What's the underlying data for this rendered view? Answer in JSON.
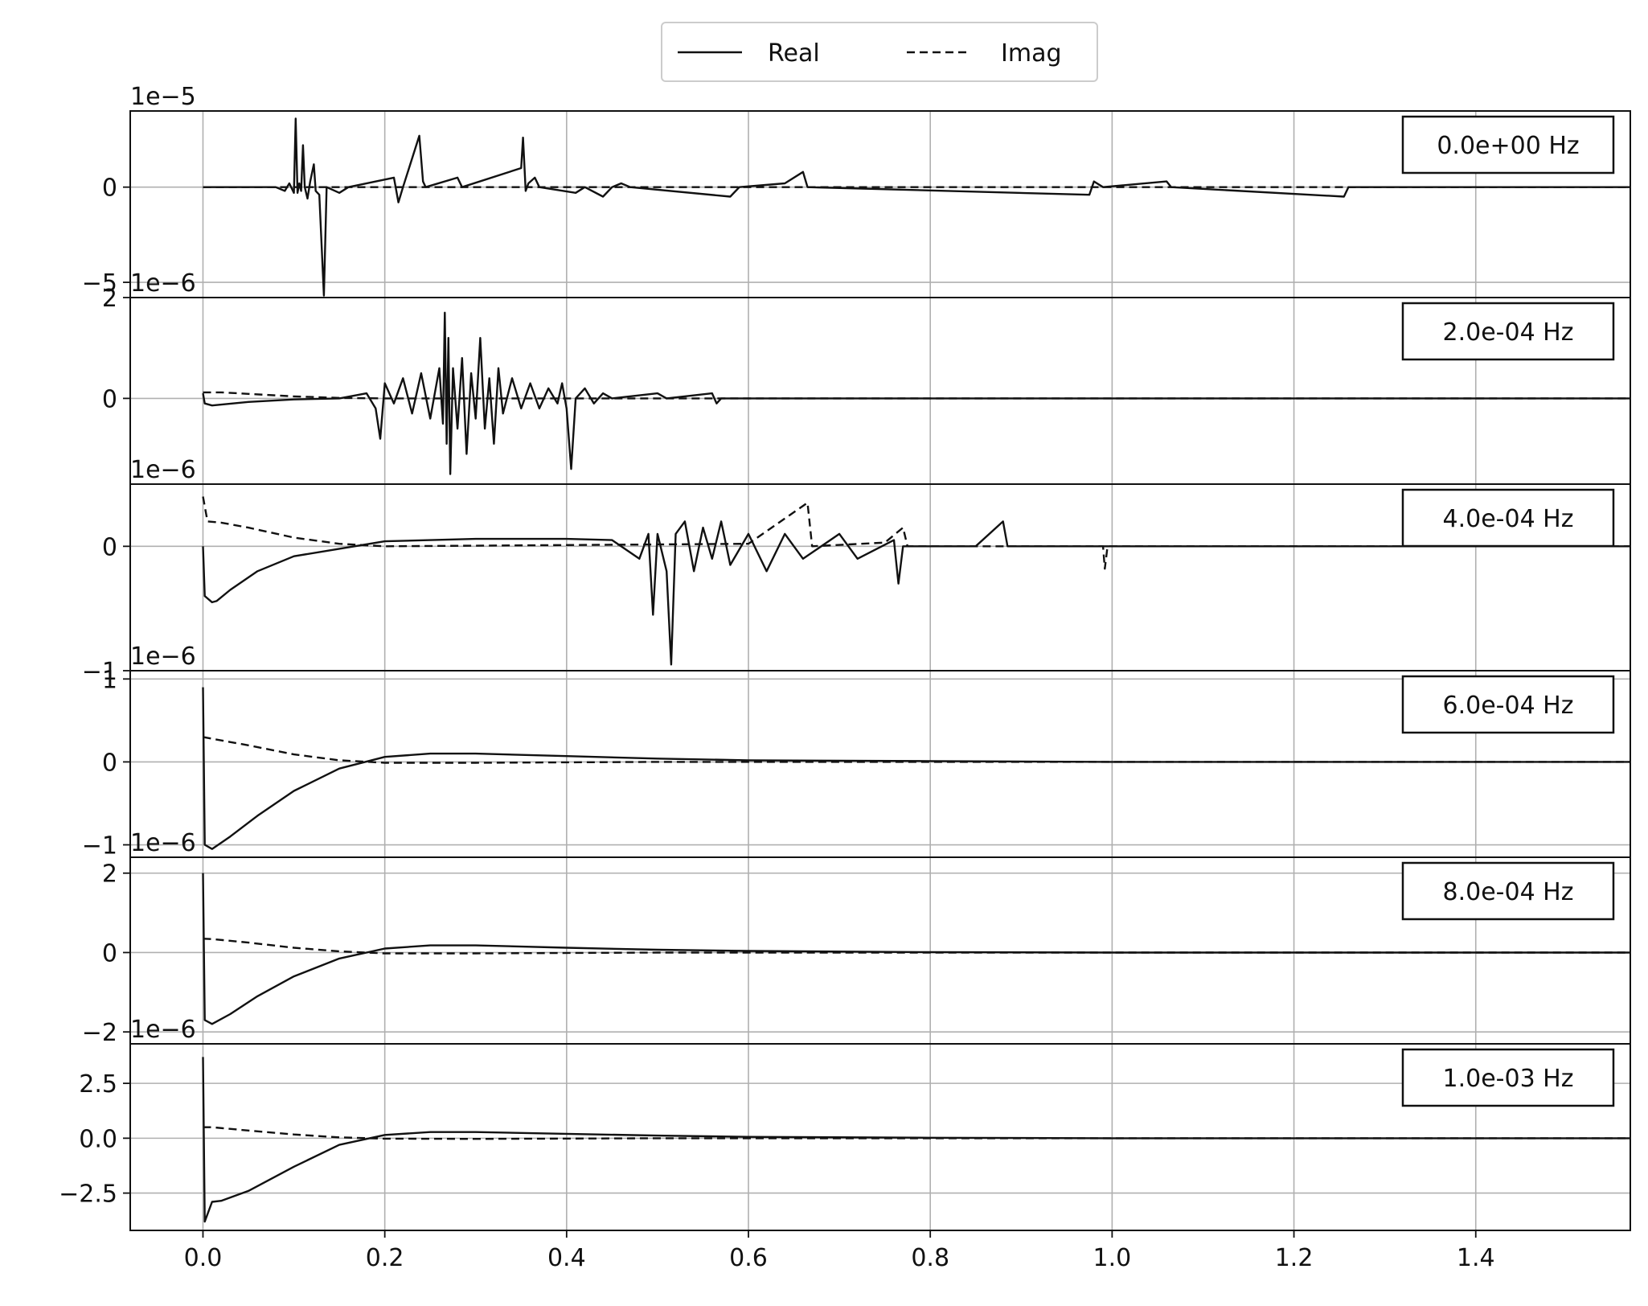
{
  "legend": {
    "entries": [
      {
        "label": "Real",
        "style": "solid"
      },
      {
        "label": "Imag",
        "style": "dashed"
      }
    ]
  },
  "chart_data": {
    "type": "line",
    "title": "",
    "xlabel": "",
    "xlim": [
      -0.08,
      1.57
    ],
    "xticks": [
      0.0,
      0.2,
      0.4,
      0.6,
      0.8,
      1.0,
      1.2,
      1.4
    ],
    "xtick_labels": [
      "0.0",
      "0.2",
      "0.4",
      "0.6",
      "0.8",
      "1.0",
      "1.2",
      "1.4"
    ],
    "grid": true,
    "legend_position": "top-center",
    "line_color": "#111111",
    "series_names": [
      "Real",
      "Imag"
    ],
    "panels": [
      {
        "frequency_label": "0.0e+00 Hz",
        "offset_text": "1e−5",
        "ylim": [
          -5.8,
          4.0
        ],
        "yticks": [
          0,
          -5
        ],
        "ytick_labels": [
          "0",
          "−5"
        ],
        "real": [
          [
            0.0,
            0
          ],
          [
            0.08,
            0
          ],
          [
            0.09,
            -0.2
          ],
          [
            0.095,
            0.2
          ],
          [
            0.1,
            -0.3
          ],
          [
            0.102,
            3.6
          ],
          [
            0.104,
            -0.3
          ],
          [
            0.106,
            0.2
          ],
          [
            0.108,
            -0.2
          ],
          [
            0.11,
            2.2
          ],
          [
            0.112,
            0
          ],
          [
            0.115,
            -0.6
          ],
          [
            0.118,
            0.3
          ],
          [
            0.122,
            1.2
          ],
          [
            0.124,
            -0.2
          ],
          [
            0.128,
            -0.4
          ],
          [
            0.133,
            -5.7
          ],
          [
            0.136,
            0
          ],
          [
            0.15,
            -0.3
          ],
          [
            0.16,
            0
          ],
          [
            0.21,
            0.5
          ],
          [
            0.215,
            -0.8
          ],
          [
            0.22,
            0
          ],
          [
            0.238,
            2.7
          ],
          [
            0.242,
            0.3
          ],
          [
            0.245,
            0
          ],
          [
            0.28,
            0.5
          ],
          [
            0.285,
            0
          ],
          [
            0.35,
            1.0
          ],
          [
            0.352,
            2.6
          ],
          [
            0.355,
            -0.2
          ],
          [
            0.358,
            0.2
          ],
          [
            0.365,
            0.5
          ],
          [
            0.37,
            0
          ],
          [
            0.41,
            -0.3
          ],
          [
            0.42,
            0
          ],
          [
            0.44,
            -0.5
          ],
          [
            0.45,
            0
          ],
          [
            0.46,
            0.2
          ],
          [
            0.47,
            0
          ],
          [
            0.58,
            -0.5
          ],
          [
            0.59,
            0
          ],
          [
            0.64,
            0.2
          ],
          [
            0.66,
            0.8
          ],
          [
            0.665,
            0
          ],
          [
            0.975,
            -0.4
          ],
          [
            0.98,
            0.3
          ],
          [
            0.99,
            0
          ],
          [
            1.06,
            0.3
          ],
          [
            1.065,
            0
          ],
          [
            1.255,
            -0.5
          ],
          [
            1.26,
            0
          ],
          [
            1.57,
            0
          ]
        ],
        "imag": [
          [
            0.0,
            0
          ],
          [
            1.57,
            0
          ]
        ]
      },
      {
        "frequency_label": "2.0e-04 Hz",
        "offset_text": "1e−6",
        "ylim": [
          -1.7,
          2.0
        ],
        "yticks": [
          0,
          2
        ],
        "ytick_labels": [
          "0",
          "2"
        ],
        "real": [
          [
            0.0,
            0.1
          ],
          [
            0.002,
            -0.1
          ],
          [
            0.01,
            -0.14
          ],
          [
            0.05,
            -0.07
          ],
          [
            0.1,
            -0.02
          ],
          [
            0.15,
            0
          ],
          [
            0.18,
            0.1
          ],
          [
            0.19,
            -0.2
          ],
          [
            0.195,
            -0.8
          ],
          [
            0.2,
            0.3
          ],
          [
            0.21,
            -0.1
          ],
          [
            0.22,
            0.4
          ],
          [
            0.23,
            -0.3
          ],
          [
            0.24,
            0.5
          ],
          [
            0.25,
            -0.4
          ],
          [
            0.26,
            0.6
          ],
          [
            0.264,
            -0.5
          ],
          [
            0.266,
            1.7
          ],
          [
            0.268,
            -0.9
          ],
          [
            0.27,
            1.2
          ],
          [
            0.272,
            -1.5
          ],
          [
            0.275,
            0.6
          ],
          [
            0.28,
            -0.6
          ],
          [
            0.285,
            0.8
          ],
          [
            0.29,
            -1.1
          ],
          [
            0.295,
            0.5
          ],
          [
            0.3,
            -0.4
          ],
          [
            0.305,
            1.2
          ],
          [
            0.31,
            -0.6
          ],
          [
            0.315,
            0.4
          ],
          [
            0.32,
            -0.9
          ],
          [
            0.325,
            0.6
          ],
          [
            0.33,
            -0.3
          ],
          [
            0.34,
            0.4
          ],
          [
            0.35,
            -0.2
          ],
          [
            0.36,
            0.3
          ],
          [
            0.37,
            -0.2
          ],
          [
            0.38,
            0.2
          ],
          [
            0.39,
            -0.1
          ],
          [
            0.395,
            0.3
          ],
          [
            0.4,
            -0.2
          ],
          [
            0.405,
            -1.4
          ],
          [
            0.41,
            0
          ],
          [
            0.42,
            0.2
          ],
          [
            0.43,
            -0.1
          ],
          [
            0.44,
            0.1
          ],
          [
            0.45,
            0
          ],
          [
            0.5,
            0.1
          ],
          [
            0.51,
            0
          ],
          [
            0.56,
            0.1
          ],
          [
            0.565,
            -0.1
          ],
          [
            0.57,
            0
          ],
          [
            1.57,
            0
          ]
        ],
        "imag": [
          [
            0.0,
            0.12
          ],
          [
            0.02,
            0.12
          ],
          [
            0.05,
            0.09
          ],
          [
            0.1,
            0.04
          ],
          [
            0.15,
            0.01
          ],
          [
            0.2,
            0
          ],
          [
            1.57,
            0
          ]
        ]
      },
      {
        "frequency_label": "4.0e-04 Hz",
        "offset_text": "1e−6",
        "ylim": [
          -1.0,
          0.5
        ],
        "yticks": [
          0,
          -1
        ],
        "ytick_labels": [
          "0",
          "−1"
        ],
        "real": [
          [
            0.0,
            0
          ],
          [
            0.002,
            -0.4
          ],
          [
            0.01,
            -0.45
          ],
          [
            0.015,
            -0.44
          ],
          [
            0.03,
            -0.35
          ],
          [
            0.06,
            -0.2
          ],
          [
            0.1,
            -0.08
          ],
          [
            0.15,
            -0.02
          ],
          [
            0.2,
            0.04
          ],
          [
            0.3,
            0.06
          ],
          [
            0.4,
            0.06
          ],
          [
            0.45,
            0.05
          ],
          [
            0.48,
            -0.1
          ],
          [
            0.49,
            0.1
          ],
          [
            0.495,
            -0.55
          ],
          [
            0.5,
            0.1
          ],
          [
            0.51,
            -0.2
          ],
          [
            0.515,
            -0.95
          ],
          [
            0.52,
            0.1
          ],
          [
            0.53,
            0.2
          ],
          [
            0.54,
            -0.2
          ],
          [
            0.55,
            0.15
          ],
          [
            0.56,
            -0.1
          ],
          [
            0.57,
            0.2
          ],
          [
            0.58,
            -0.15
          ],
          [
            0.6,
            0.1
          ],
          [
            0.62,
            -0.2
          ],
          [
            0.64,
            0.1
          ],
          [
            0.66,
            -0.1
          ],
          [
            0.7,
            0.1
          ],
          [
            0.72,
            -0.1
          ],
          [
            0.76,
            0.05
          ],
          [
            0.765,
            -0.3
          ],
          [
            0.77,
            0
          ],
          [
            0.8,
            0
          ],
          [
            0.85,
            0
          ],
          [
            0.88,
            0.2
          ],
          [
            0.885,
            0
          ],
          [
            1.57,
            0
          ]
        ],
        "imag": [
          [
            0.0,
            0.4
          ],
          [
            0.005,
            0.2
          ],
          [
            0.02,
            0.19
          ],
          [
            0.05,
            0.15
          ],
          [
            0.1,
            0.07
          ],
          [
            0.15,
            0.02
          ],
          [
            0.2,
            0
          ],
          [
            0.6,
            0.02
          ],
          [
            0.665,
            0.35
          ],
          [
            0.67,
            0
          ],
          [
            0.75,
            0.03
          ],
          [
            0.77,
            0.15
          ],
          [
            0.775,
            0
          ],
          [
            0.99,
            0
          ],
          [
            0.992,
            -0.18
          ],
          [
            0.995,
            0
          ],
          [
            1.57,
            0
          ]
        ]
      },
      {
        "frequency_label": "6.0e-04 Hz",
        "offset_text": "1e−6",
        "ylim": [
          -1.15,
          1.1
        ],
        "yticks": [
          1,
          0,
          -1
        ],
        "ytick_labels": [
          "1",
          "0",
          "−1"
        ],
        "real": [
          [
            0.0,
            0.9
          ],
          [
            0.002,
            -1.0
          ],
          [
            0.01,
            -1.05
          ],
          [
            0.03,
            -0.9
          ],
          [
            0.06,
            -0.65
          ],
          [
            0.1,
            -0.35
          ],
          [
            0.15,
            -0.08
          ],
          [
            0.2,
            0.06
          ],
          [
            0.25,
            0.1
          ],
          [
            0.3,
            0.1
          ],
          [
            0.4,
            0.07
          ],
          [
            0.5,
            0.04
          ],
          [
            0.6,
            0.02
          ],
          [
            0.8,
            0.01
          ],
          [
            1.0,
            0
          ],
          [
            1.57,
            0
          ]
        ],
        "imag": [
          [
            0.0,
            0.3
          ],
          [
            0.01,
            0.28
          ],
          [
            0.05,
            0.2
          ],
          [
            0.1,
            0.09
          ],
          [
            0.15,
            0.02
          ],
          [
            0.2,
            -0.01
          ],
          [
            0.3,
            -0.01
          ],
          [
            0.5,
            0
          ],
          [
            1.57,
            0
          ]
        ]
      },
      {
        "frequency_label": "8.0e-04 Hz",
        "offset_text": "1e−6",
        "ylim": [
          -2.3,
          2.4
        ],
        "yticks": [
          2,
          0,
          -2
        ],
        "ytick_labels": [
          "2",
          "0",
          "−2"
        ],
        "real": [
          [
            0.0,
            2.0
          ],
          [
            0.002,
            -1.7
          ],
          [
            0.01,
            -1.8
          ],
          [
            0.03,
            -1.55
          ],
          [
            0.06,
            -1.1
          ],
          [
            0.1,
            -0.6
          ],
          [
            0.15,
            -0.15
          ],
          [
            0.2,
            0.1
          ],
          [
            0.25,
            0.18
          ],
          [
            0.3,
            0.18
          ],
          [
            0.4,
            0.12
          ],
          [
            0.5,
            0.07
          ],
          [
            0.6,
            0.04
          ],
          [
            0.8,
            0.01
          ],
          [
            1.0,
            0
          ],
          [
            1.57,
            0
          ]
        ],
        "imag": [
          [
            0.0,
            0.35
          ],
          [
            0.01,
            0.34
          ],
          [
            0.05,
            0.25
          ],
          [
            0.1,
            0.12
          ],
          [
            0.15,
            0.03
          ],
          [
            0.2,
            -0.02
          ],
          [
            0.3,
            -0.02
          ],
          [
            0.5,
            0
          ],
          [
            1.57,
            0
          ]
        ]
      },
      {
        "frequency_label": "1.0e-03 Hz",
        "offset_text": "1e−6",
        "ylim": [
          -4.2,
          4.3
        ],
        "yticks": [
          2.5,
          0.0,
          -2.5
        ],
        "ytick_labels": [
          "2.5",
          "0.0",
          "−2.5"
        ],
        "real": [
          [
            0.0,
            3.7
          ],
          [
            0.002,
            -3.8
          ],
          [
            0.01,
            -2.9
          ],
          [
            0.02,
            -2.85
          ],
          [
            0.05,
            -2.4
          ],
          [
            0.1,
            -1.3
          ],
          [
            0.15,
            -0.3
          ],
          [
            0.2,
            0.15
          ],
          [
            0.25,
            0.28
          ],
          [
            0.3,
            0.28
          ],
          [
            0.4,
            0.2
          ],
          [
            0.5,
            0.12
          ],
          [
            0.6,
            0.06
          ],
          [
            0.8,
            0.02
          ],
          [
            1.0,
            0
          ],
          [
            1.57,
            0
          ]
        ],
        "imag": [
          [
            0.0,
            0.5
          ],
          [
            0.01,
            0.5
          ],
          [
            0.05,
            0.35
          ],
          [
            0.1,
            0.17
          ],
          [
            0.15,
            0.04
          ],
          [
            0.2,
            -0.02
          ],
          [
            0.3,
            -0.03
          ],
          [
            0.5,
            0
          ],
          [
            1.57,
            0
          ]
        ]
      }
    ]
  }
}
